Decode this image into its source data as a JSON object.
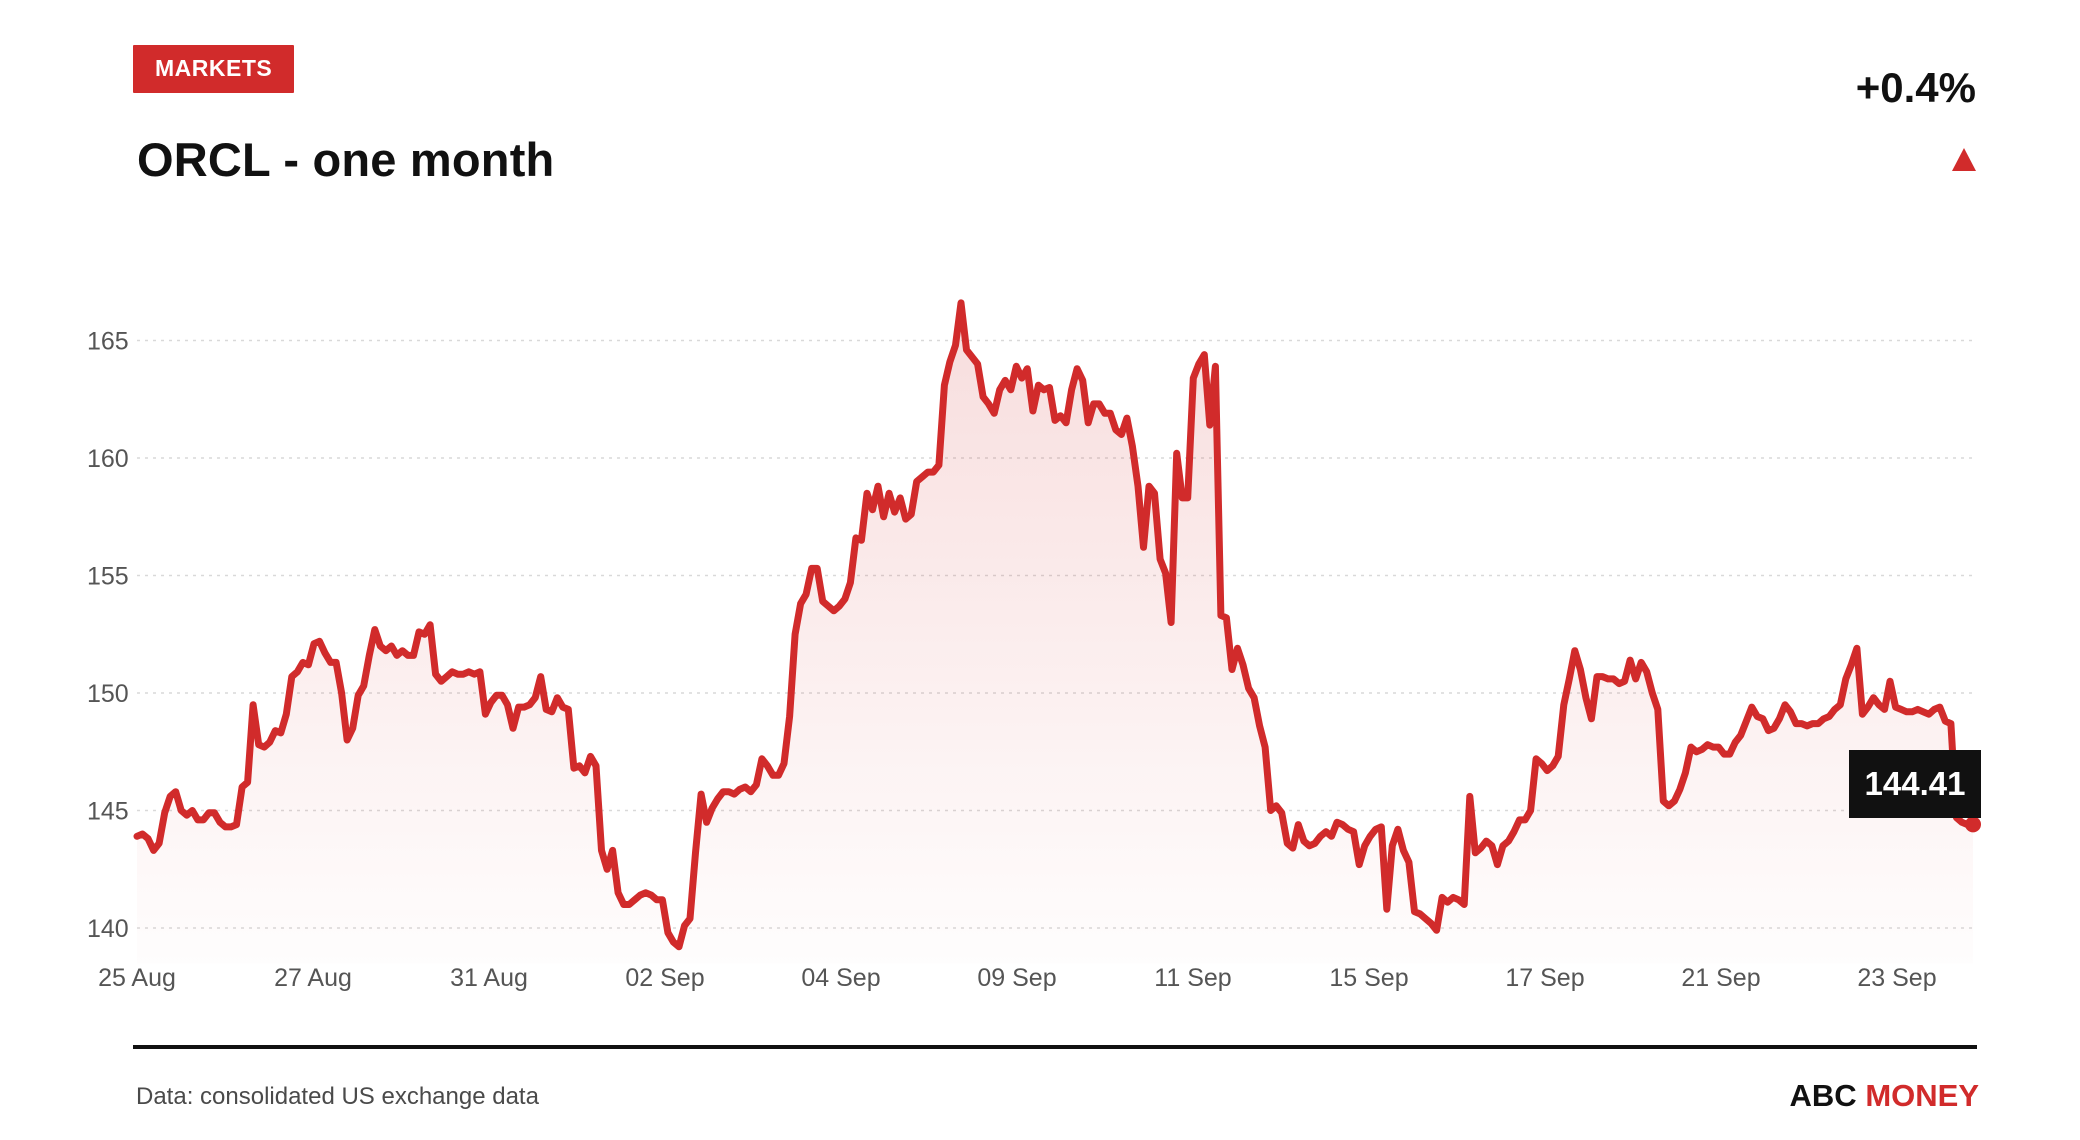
{
  "header": {
    "badge": "MARKETS",
    "title": "ORCL - one month",
    "change": "+0.4%",
    "change_icon": "triangle-up-icon"
  },
  "footer": {
    "source": "Data: consolidated US exchange data",
    "brand_part1": "ABC",
    "brand_part2": "MONEY"
  },
  "colors": {
    "accent": "#d12b2b",
    "text": "#111111",
    "muted": "#555555",
    "grid": "#d9d9d9",
    "label_bg": "#111111",
    "label_text": "#ffffff"
  },
  "chart_data": {
    "type": "area",
    "title": "ORCL - one month",
    "xlabel": "",
    "ylabel": "",
    "ylim": [
      138.5,
      167
    ],
    "yticks": [
      140,
      145,
      150,
      155,
      160,
      165
    ],
    "xticks": [
      "25 Aug",
      "27 Aug",
      "31 Aug",
      "02 Sep",
      "04 Sep",
      "09 Sep",
      "11 Sep",
      "15 Sep",
      "17 Sep",
      "21 Sep",
      "23 Sep"
    ],
    "grid": true,
    "last_value_label": "144.41",
    "series": [
      {
        "values": [
          143.9,
          144.0,
          143.8,
          143.3,
          143.6,
          144.9,
          145.6,
          145.8,
          145.0,
          144.8,
          145.0,
          144.6,
          144.6,
          144.9,
          144.9,
          144.5,
          144.3,
          144.3,
          144.4,
          146.0,
          146.2,
          149.5,
          147.8,
          147.7,
          147.9,
          148.4,
          148.3,
          149.1,
          150.7,
          150.9,
          151.3,
          151.2,
          152.1,
          152.2,
          151.7,
          151.3,
          151.3,
          150.0,
          148.0,
          148.5,
          149.9,
          150.3,
          151.6,
          152.7,
          152.0,
          151.8,
          152.0,
          151.6,
          151.8,
          151.6,
          151.6,
          152.6,
          152.5,
          152.9,
          150.8,
          150.5,
          150.7,
          150.9,
          150.8,
          150.8,
          150.9,
          150.8,
          150.9,
          149.1,
          149.6,
          149.9,
          149.9,
          149.5,
          148.5,
          149.4,
          149.4,
          149.5,
          149.8,
          150.7,
          149.3,
          149.2,
          149.8,
          149.4,
          149.3,
          146.8,
          146.9,
          146.6,
          147.3,
          146.9,
          143.3,
          142.5,
          143.3,
          141.5,
          141.0,
          141.0,
          141.2,
          141.4,
          141.5,
          141.4,
          141.2,
          141.2,
          139.8,
          139.4,
          139.2,
          140.1,
          140.4,
          143.2,
          145.7,
          144.5,
          145.1,
          145.5,
          145.8,
          145.8,
          145.7,
          145.9,
          146.0,
          145.8,
          146.1,
          147.2,
          146.9,
          146.5,
          146.5,
          147.0,
          149.0,
          152.5,
          153.8,
          154.2,
          155.3,
          155.3,
          153.9,
          153.7,
          153.5,
          153.7,
          154.0,
          154.7,
          156.6,
          156.5,
          158.5,
          157.8,
          158.8,
          157.5,
          158.5,
          157.7,
          158.3,
          157.4,
          157.6,
          159.0,
          159.2,
          159.4,
          159.4,
          159.7,
          163.1,
          164.1,
          164.8,
          166.6,
          164.6,
          164.3,
          164.0,
          162.6,
          162.3,
          161.9,
          162.9,
          163.3,
          162.9,
          163.9,
          163.4,
          163.8,
          162.0,
          163.1,
          162.9,
          163.0,
          161.6,
          161.8,
          161.5,
          162.9,
          163.8,
          163.3,
          161.5,
          162.3,
          162.3,
          161.9,
          161.9,
          161.2,
          161.0,
          161.7,
          160.5,
          158.8,
          156.2,
          158.8,
          158.5,
          155.7,
          155.1,
          153.0,
          160.2,
          158.3,
          158.3,
          163.4,
          164.0,
          164.4,
          161.4,
          163.9,
          153.3,
          153.2,
          151.0,
          151.9,
          151.2,
          150.2,
          149.8,
          148.6,
          147.7,
          145.0,
          145.2,
          144.9,
          143.6,
          143.4,
          144.4,
          143.7,
          143.5,
          143.6,
          143.9,
          144.1,
          143.9,
          144.5,
          144.4,
          144.2,
          144.1,
          142.7,
          143.5,
          143.9,
          144.2,
          144.3,
          140.8,
          143.5,
          144.2,
          143.3,
          142.8,
          140.7,
          140.6,
          140.4,
          140.2,
          139.9,
          141.3,
          141.1,
          141.3,
          141.2,
          141.0,
          145.6,
          143.2,
          143.4,
          143.7,
          143.5,
          142.7,
          143.5,
          143.7,
          144.1,
          144.6,
          144.6,
          145.0,
          147.2,
          147.0,
          146.7,
          146.9,
          147.3,
          149.5,
          150.6,
          151.8,
          151.0,
          149.8,
          148.9,
          150.7,
          150.7,
          150.6,
          150.6,
          150.4,
          150.5,
          151.4,
          150.6,
          151.3,
          150.9,
          150.0,
          149.3,
          145.4,
          145.2,
          145.4,
          145.9,
          146.6,
          147.7,
          147.5,
          147.6,
          147.8,
          147.7,
          147.7,
          147.4,
          147.4,
          147.9,
          148.2,
          148.8,
          149.4,
          149.0,
          148.9,
          148.4,
          148.5,
          148.9,
          149.5,
          149.2,
          148.7,
          148.7,
          148.6,
          148.7,
          148.7,
          148.9,
          149.0,
          149.3,
          149.5,
          150.6,
          151.2,
          151.9,
          149.1,
          149.4,
          149.8,
          149.5,
          149.3,
          150.5,
          149.4,
          149.3,
          149.2,
          149.2,
          149.3,
          149.2,
          149.1,
          149.3,
          149.4,
          148.8,
          148.7,
          144.7,
          144.5,
          144.4,
          144.41
        ]
      }
    ]
  }
}
